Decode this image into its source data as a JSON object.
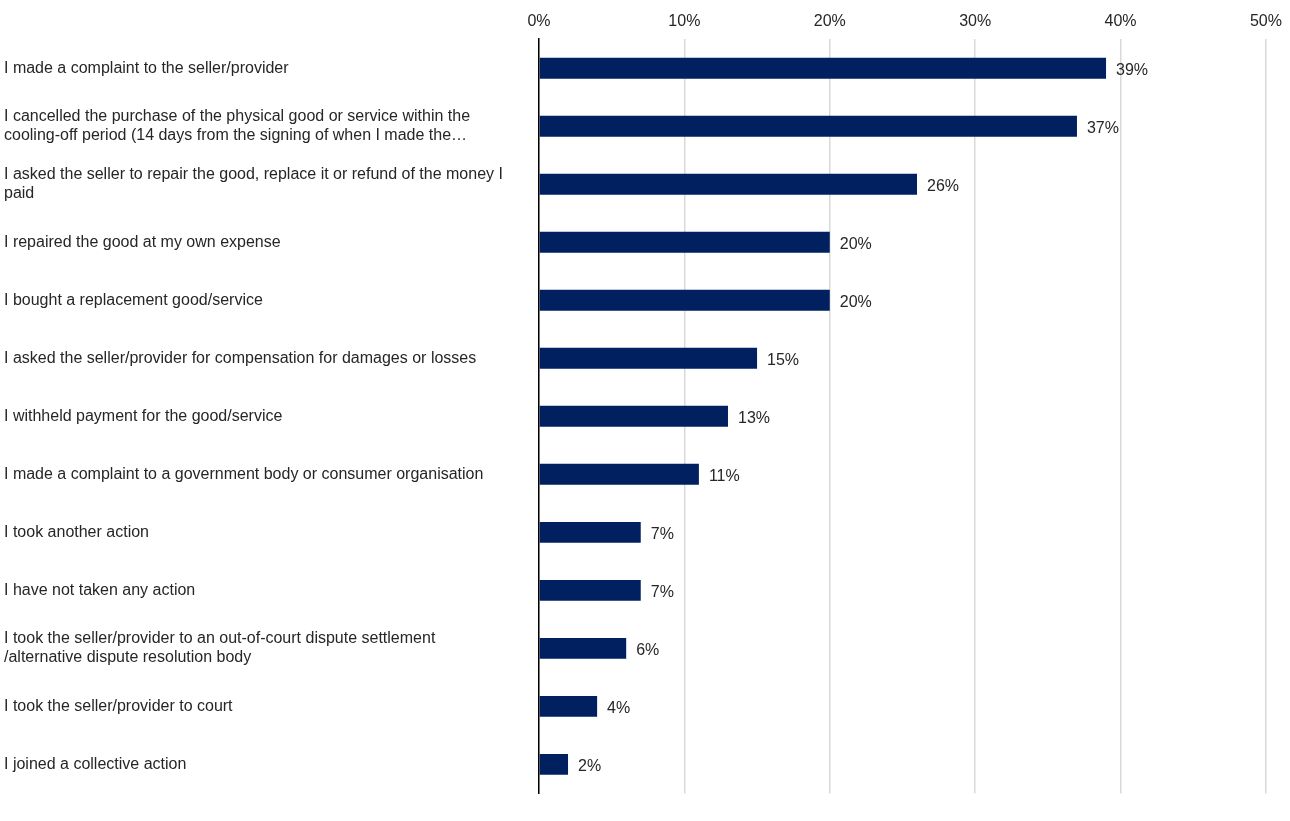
{
  "chart_data": {
    "type": "bar",
    "orientation": "horizontal",
    "categories": [
      "I made a complaint to the seller/provider",
      "I cancelled the purchase of the physical good or service within the cooling-off period (14 days from the signing of when I made the…",
      "I asked the seller to repair the good, replace it or refund of the money I paid",
      "I repaired the good at my own expense",
      "I bought a replacement good/service",
      "I asked the seller/provider for compensation for damages or losses",
      "I withheld payment for the good/service",
      "I made a complaint to a government body or consumer organisation",
      "I took another action",
      "I have not taken any action",
      "I took the seller/provider to an out-of-court dispute settlement /alternative dispute resolution body",
      "I took the seller/provider to court",
      "I joined a collective action"
    ],
    "values": [
      39,
      37,
      26,
      20,
      20,
      15,
      13,
      11,
      7,
      7,
      6,
      4,
      2
    ],
    "value_labels": [
      "39%",
      "37%",
      "26%",
      "20%",
      "20%",
      "15%",
      "13%",
      "11%",
      "7%",
      "7%",
      "6%",
      "4%",
      "2%"
    ],
    "color": "#002060",
    "xlim": [
      0,
      50
    ],
    "xticks": [
      {
        "value": 0,
        "label": "0%"
      },
      {
        "value": 10,
        "label": "10%"
      },
      {
        "value": 20,
        "label": "20%"
      },
      {
        "value": 30,
        "label": "30%"
      },
      {
        "value": 40,
        "label": "40%"
      },
      {
        "value": 50,
        "label": "50%"
      }
    ],
    "grid": "x",
    "legend": false
  }
}
